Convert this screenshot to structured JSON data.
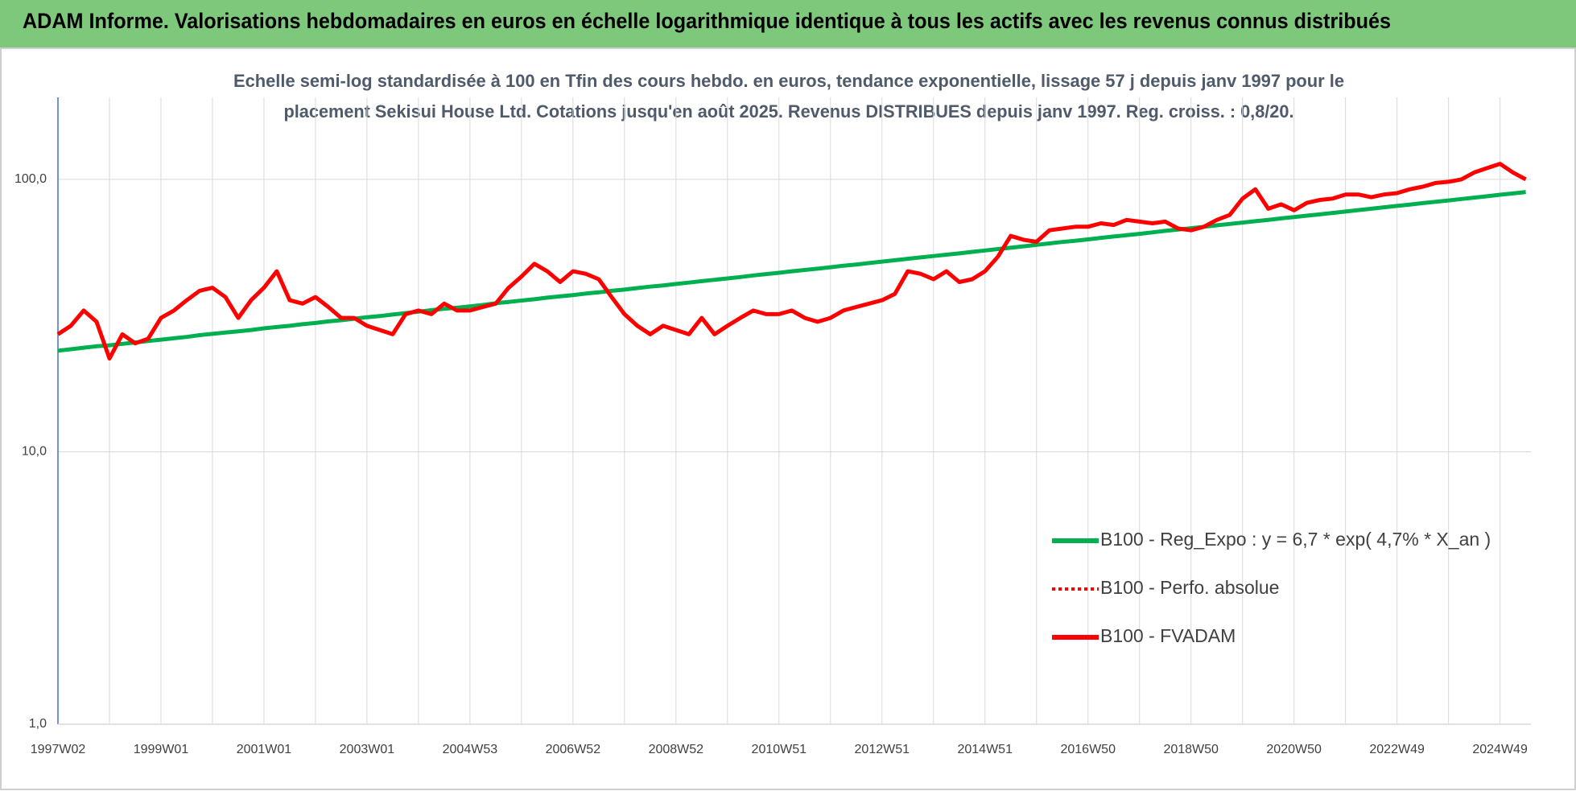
{
  "chart_data": {
    "type": "line",
    "title": "ADAM Informe. Valorisations hebdomadaires en euros en échelle logarithmique identique à tous les actifs avec les revenus connus distribués",
    "subtitle_lines": [
      "Echelle semi-log standardisée à 100 en Tfin des cours hebdo. en euros, tendance exponentielle, lissage 57 j depuis janv 1997 pour le",
      "placement Sekisui House Ltd. Cotations jusqu'en août 2025. Revenus DISTRIBUES depuis janv 1997. Reg. croiss. : 0,8/20."
    ],
    "categories": [
      "1997W02",
      null,
      null,
      null,
      null,
      null,
      null,
      null,
      "1999W01",
      null,
      null,
      null,
      null,
      null,
      null,
      null,
      "2001W01",
      null,
      null,
      null,
      null,
      null,
      null,
      null,
      "2003W01",
      null,
      null,
      null,
      null,
      null,
      null,
      null,
      "2004W53",
      null,
      null,
      null,
      null,
      null,
      null,
      null,
      "2006W52",
      null,
      null,
      null,
      null,
      null,
      null,
      null,
      "2008W52",
      null,
      null,
      null,
      null,
      null,
      null,
      null,
      "2010W51",
      null,
      null,
      null,
      null,
      null,
      null,
      null,
      "2012W51",
      null,
      null,
      null,
      null,
      null,
      null,
      null,
      "2014W51",
      null,
      null,
      null,
      null,
      null,
      null,
      null,
      "2016W50",
      null,
      null,
      null,
      null,
      null,
      null,
      null,
      "2018W50",
      null,
      null,
      null,
      null,
      null,
      null,
      null,
      "2020W50",
      null,
      null,
      null,
      null,
      null,
      null,
      null,
      "2022W49",
      null,
      null,
      null,
      null,
      null,
      null,
      null,
      "2024W49",
      null,
      null
    ],
    "series": [
      {
        "name": "B100 - Reg_Expo : y = 6,7 * exp( 4,7% *  X_an )",
        "color": "#00b050",
        "dash": "solid",
        "values": [
          23.5,
          23.8,
          24.1,
          24.4,
          24.6,
          24.9,
          25.2,
          25.5,
          25.8,
          26.1,
          26.4,
          26.8,
          27.1,
          27.4,
          27.7,
          28.0,
          28.4,
          28.7,
          29.0,
          29.4,
          29.7,
          30.1,
          30.4,
          30.8,
          31.2,
          31.5,
          31.9,
          32.3,
          32.7,
          33.1,
          33.5,
          33.8,
          34.2,
          34.6,
          35.1,
          35.5,
          35.9,
          36.3,
          36.8,
          37.2,
          37.6,
          38.1,
          38.5,
          39.0,
          39.4,
          39.9,
          40.4,
          40.8,
          41.3,
          41.8,
          42.3,
          42.8,
          43.3,
          43.8,
          44.4,
          44.9,
          45.4,
          46.0,
          46.5,
          47.0,
          47.6,
          48.2,
          48.7,
          49.3,
          49.9,
          50.5,
          51.1,
          51.7,
          52.3,
          52.9,
          53.5,
          54.2,
          54.8,
          55.5,
          56.1,
          56.8,
          57.5,
          58.2,
          58.9,
          59.5,
          60.2,
          61.0,
          61.7,
          62.4,
          63.1,
          63.9,
          64.7,
          65.4,
          66.2,
          67.0,
          67.8,
          68.6,
          69.4,
          70.2,
          71.0,
          71.9,
          72.7,
          73.6,
          74.4,
          75.3,
          76.2,
          77.1,
          78.0,
          79.0,
          79.9,
          80.8,
          81.8,
          82.7,
          83.7,
          84.7,
          85.7,
          86.7,
          87.8,
          88.8,
          89.9
        ]
      },
      {
        "name": "B100 - Perfo. absolue",
        "color": "#ff0000",
        "dash": "dotted"
      },
      {
        "name": "B100 - FVADAM",
        "color": "#ff0000",
        "dash": "solid",
        "values": [
          27,
          29,
          33,
          30,
          22,
          27,
          25,
          26,
          31,
          33,
          36,
          39,
          40,
          37,
          31,
          36,
          40,
          46,
          36,
          35,
          37,
          34,
          31,
          31,
          29,
          28,
          27,
          32,
          33,
          32,
          35,
          33,
          33,
          34,
          35,
          40,
          44,
          49,
          46,
          42,
          46,
          45,
          43,
          37,
          32,
          29,
          27,
          29,
          28,
          27,
          31,
          27,
          29,
          31,
          33,
          32,
          32,
          33,
          31,
          30,
          31,
          33,
          34,
          35,
          36,
          38,
          46,
          45,
          43,
          46,
          42,
          43,
          46,
          52,
          62,
          60,
          59,
          65,
          66,
          67,
          67,
          69,
          68,
          71,
          70,
          69,
          70,
          66,
          65,
          67,
          71,
          74,
          85,
          92,
          78,
          81,
          77,
          82,
          84,
          85,
          88,
          88,
          86,
          88,
          89,
          92,
          94,
          97,
          98,
          100,
          106,
          110,
          114,
          106,
          100
        ]
      }
    ],
    "log_scale": true,
    "ylim": [
      1,
      200
    ],
    "yticks": [
      {
        "value": 1,
        "label": "1,0"
      },
      {
        "value": 10,
        "label": "10,0"
      },
      {
        "value": 100,
        "label": "100,0"
      }
    ],
    "grid": true,
    "legend": "lower-right"
  }
}
